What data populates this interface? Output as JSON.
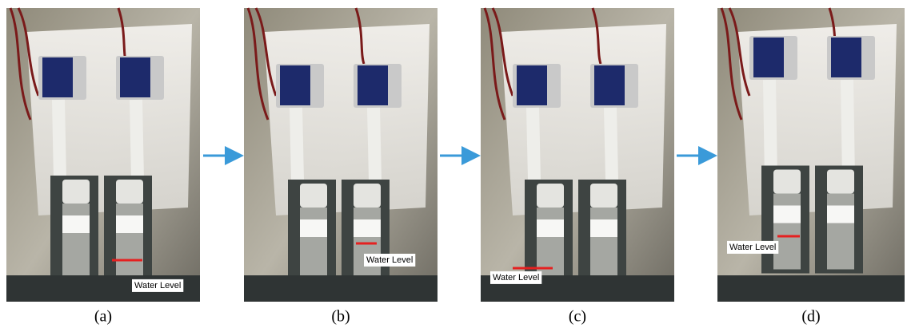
{
  "panels": [
    {
      "caption": "(a)",
      "annotation": "Water Level"
    },
    {
      "caption": "(b)",
      "annotation": "Water Level"
    },
    {
      "caption": "(c)",
      "annotation": "Water Level"
    },
    {
      "caption": "(d)",
      "annotation": "Water Level"
    }
  ]
}
